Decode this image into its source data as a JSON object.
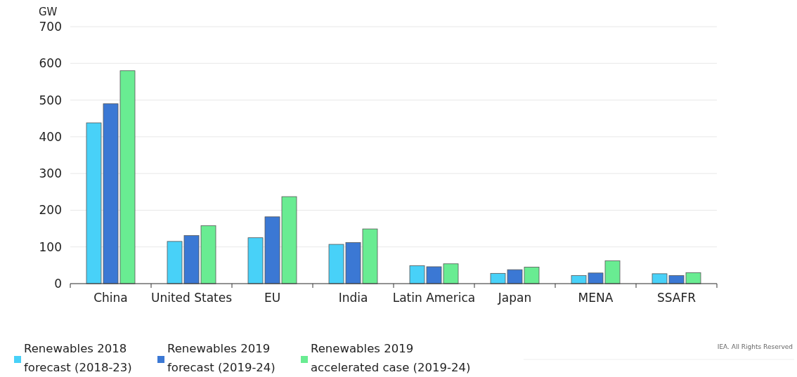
{
  "chart_data": {
    "type": "bar",
    "ylabel": "GW",
    "categories": [
      "China",
      "United States",
      "EU",
      "India",
      "Latin America",
      "Japan",
      "MENA",
      "SSAFR"
    ],
    "series": [
      {
        "name": "Renewables 2018 forecast (2018-23)",
        "color": "#48d1f8",
        "values": [
          438,
          115,
          125,
          107,
          49,
          28,
          22,
          27
        ]
      },
      {
        "name": "Renewables 2019 forecast (2019-24)",
        "color": "#3b78d4",
        "values": [
          490,
          131,
          182,
          112,
          46,
          38,
          29,
          22
        ]
      },
      {
        "name": "Renewables 2019 accelerated case (2019-24)",
        "color": "#69ec92",
        "values": [
          580,
          158,
          237,
          149,
          54,
          45,
          62,
          30
        ]
      }
    ],
    "ylim": [
      0,
      700
    ],
    "yticks": [
      0,
      100,
      200,
      300,
      400,
      500,
      600,
      700
    ],
    "grid": "y",
    "legend": "bottom left",
    "annotations": [
      "IEA. All Rights Reserved"
    ]
  }
}
